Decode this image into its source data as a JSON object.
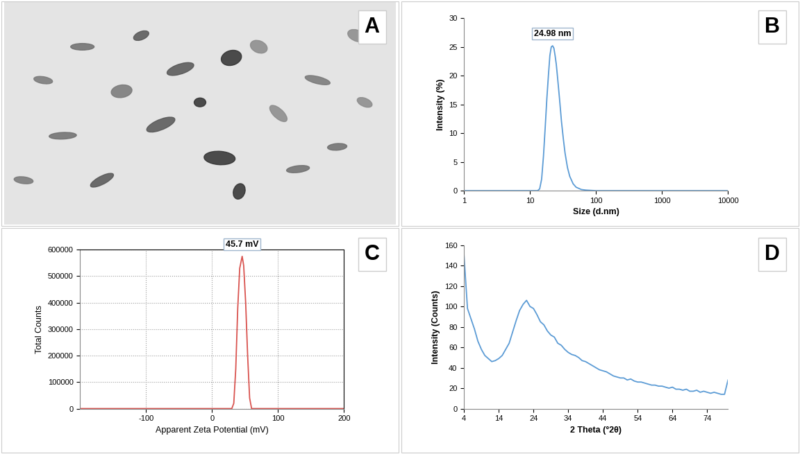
{
  "chart_data": [
    {
      "type": "image",
      "panel_label": "A"
    },
    {
      "type": "line",
      "panel_label": "B",
      "color": "#5b9bd5",
      "x_label": "Size (d.nm)",
      "y_label": "Intensity (%)",
      "annotations": [
        "24.98 nm"
      ],
      "log": "x",
      "grid": false,
      "x": [
        1,
        10,
        13,
        14,
        15,
        16,
        17,
        18,
        19,
        20,
        21,
        22,
        23,
        24,
        25,
        26,
        28,
        30,
        32,
        34,
        37,
        40,
        45,
        50,
        60,
        70,
        100,
        1000,
        10000
      ],
      "values": [
        0,
        0,
        0,
        0.3,
        2,
        6,
        11,
        16,
        20,
        23.5,
        25,
        25.2,
        24.8,
        23.5,
        22,
        20,
        16,
        12,
        9,
        6.5,
        4,
        2.5,
        1.2,
        0.6,
        0.2,
        0.1,
        0,
        0,
        0
      ],
      "xlim": [
        1,
        10000
      ],
      "xticks": [
        1,
        10,
        100,
        1000,
        10000
      ],
      "ylim": [
        0,
        30
      ],
      "yticks": [
        0,
        5,
        10,
        15,
        20,
        25,
        30
      ]
    },
    {
      "type": "line",
      "panel_label": "C",
      "color": "#d9534f",
      "x_label": "Apparent Zeta Potential (mV)",
      "y_label": "Total Counts",
      "annotations": [
        "45.7 mV"
      ],
      "grid": true,
      "x": [
        -200,
        30,
        33,
        36,
        39,
        42,
        45.7,
        48,
        51,
        54,
        57,
        60,
        200
      ],
      "values": [
        0,
        0,
        20000,
        150000,
        380000,
        530000,
        575000,
        540000,
        400000,
        200000,
        40000,
        0,
        0
      ],
      "xlim": [
        -200,
        200
      ],
      "xticks": [
        -100,
        0,
        100,
        200
      ],
      "ylim": [
        0,
        600000
      ],
      "yticks": [
        0,
        100000,
        200000,
        300000,
        400000,
        500000,
        600000
      ]
    },
    {
      "type": "line",
      "panel_label": "D",
      "color": "#5b9bd5",
      "x_label": "2 Theta (°2θ)",
      "y_label": "Intensity (Counts)",
      "grid": false,
      "x": [
        4,
        5,
        6,
        7,
        8,
        9,
        10,
        11,
        12,
        13,
        14,
        15,
        16,
        17,
        18,
        19,
        20,
        21,
        22,
        23,
        24,
        25,
        26,
        27,
        28,
        29,
        30,
        31,
        32,
        33,
        34,
        35,
        36,
        37,
        38,
        39,
        40,
        41,
        42,
        43,
        44,
        45,
        46,
        47,
        48,
        49,
        50,
        51,
        52,
        53,
        54,
        55,
        56,
        57,
        58,
        59,
        60,
        61,
        62,
        63,
        64,
        65,
        66,
        67,
        68,
        69,
        70,
        71,
        72,
        73,
        74,
        75,
        76,
        77,
        78,
        79,
        80
      ],
      "values": [
        150,
        98,
        88,
        78,
        66,
        58,
        52,
        49,
        46,
        47,
        49,
        52,
        58,
        64,
        75,
        86,
        96,
        102,
        106,
        100,
        98,
        92,
        85,
        82,
        76,
        72,
        70,
        64,
        62,
        58,
        55,
        53,
        52,
        50,
        47,
        46,
        44,
        42,
        40,
        38,
        37,
        36,
        34,
        32,
        31,
        30,
        30,
        28,
        29,
        27,
        26,
        26,
        25,
        24,
        23,
        23,
        22,
        22,
        21,
        20,
        21,
        19,
        19,
        18,
        19,
        17,
        17,
        18,
        16,
        17,
        16,
        15,
        16,
        15,
        14,
        14,
        28
      ],
      "xlim": [
        4,
        80
      ],
      "xticks": [
        4,
        14,
        24,
        34,
        44,
        54,
        64,
        74
      ],
      "ylim": [
        0,
        160
      ],
      "yticks": [
        0,
        20,
        40,
        60,
        80,
        100,
        120,
        140,
        160
      ]
    }
  ]
}
